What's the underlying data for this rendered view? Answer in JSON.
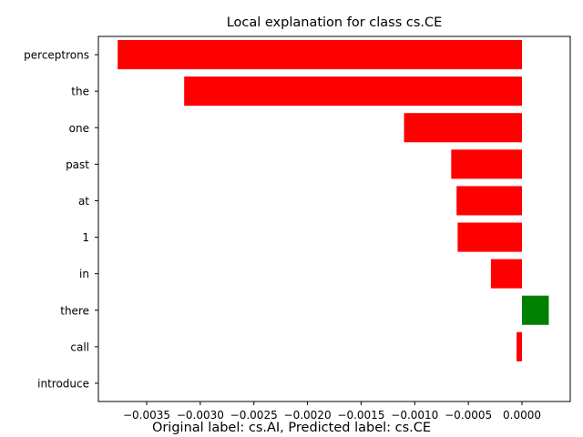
{
  "chart_data": {
    "type": "bar",
    "orientation": "horizontal",
    "title": "Local explanation for class cs.CE",
    "caption": "Original label: cs.AI, Predicted label: cs.CE",
    "xlabel": "",
    "ylabel": "",
    "xlim": [
      -0.00395,
      0.00045
    ],
    "x_ticks": [
      -0.0035,
      -0.003,
      -0.0025,
      -0.002,
      -0.0015,
      -0.001,
      -0.0005,
      0.0
    ],
    "x_tick_labels": [
      "−0.0035",
      "−0.0030",
      "−0.0025",
      "−0.0020",
      "−0.0015",
      "−0.0010",
      "−0.0005",
      "0.0000"
    ],
    "grid": false,
    "legend": "none",
    "categories": [
      "perceptrons",
      "the",
      "one",
      "past",
      "at",
      "1",
      "in",
      "there",
      "call",
      "introduce"
    ],
    "values": [
      -0.00377,
      -0.00315,
      -0.0011,
      -0.00066,
      -0.00061,
      -0.0006,
      -0.00029,
      0.00025,
      -5e-05,
      0.0
    ],
    "colors": {
      "negative": "#ff0000",
      "positive": "#008000",
      "axes": "#000000"
    }
  }
}
